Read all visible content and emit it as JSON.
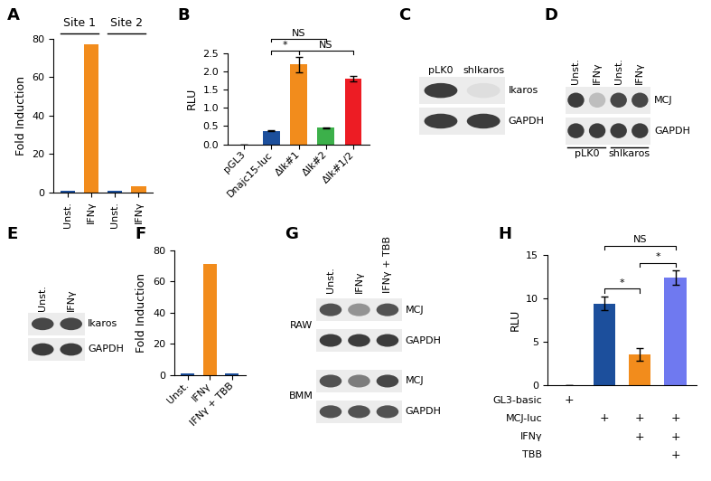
{
  "chart_data": [
    {
      "type": "bar",
      "title": "A",
      "categories": [
        "Unst.",
        "IFNγ",
        "Unst.",
        "IFNγ"
      ],
      "values": [
        1,
        77,
        1,
        3
      ],
      "colors": [
        "#1c4f9c",
        "#f28c1c",
        "#1c4f9c",
        "#f28c1c"
      ],
      "y_label": "Fold Induction",
      "ylim": [
        0,
        80
      ],
      "yticks": [
        0,
        20,
        40,
        60,
        80
      ],
      "groups": [
        "Site 1",
        "Site 2"
      ]
    },
    {
      "type": "bar",
      "title": "B",
      "categories": [
        "pGL3",
        "Dnajc15-luc",
        "ΔIk#1",
        "ΔIk#2",
        "ΔIk#1/2"
      ],
      "values": [
        0,
        0.37,
        2.18,
        0.45,
        1.8
      ],
      "errors": [
        0,
        0.02,
        0.22,
        0.02,
        0.08
      ],
      "colors": [
        "#1c4f9c",
        "#1c4f9c",
        "#f28c1c",
        "#3cb04a",
        "#ed1c24"
      ],
      "y_label": "RLU",
      "ylim": [
        0,
        2.5
      ],
      "yticks": [
        {
          "value": 0,
          "label": "0.0"
        },
        0.5,
        {
          "value": 1,
          "label": "1.0"
        },
        1.5,
        {
          "value": 2,
          "label": "2.0"
        },
        2.5
      ],
      "annotations": [
        {
          "text": "*",
          "from": 1,
          "to": 2
        },
        {
          "text": "NS",
          "from": 2,
          "to": 4
        },
        {
          "text": "NS",
          "from": 1,
          "to": 3
        }
      ]
    },
    {
      "type": "bar",
      "title": "F",
      "categories": [
        "Unst.",
        "IFNγ",
        "IFNγ + TBB"
      ],
      "values": [
        1,
        71,
        1
      ],
      "colors": [
        "#1c4f9c",
        "#f28c1c",
        "#1c4f9c"
      ],
      "y_label": "Fold Induction",
      "ylim": [
        0,
        80
      ],
      "yticks": [
        0,
        20,
        40,
        60,
        80
      ]
    },
    {
      "type": "bar",
      "title": "H",
      "categories": [
        null,
        null,
        null,
        null
      ],
      "values": [
        0,
        9.4,
        3.5,
        12.4
      ],
      "errors": [
        0,
        0.8,
        0.75,
        0.8
      ],
      "colors": [
        "#1c4f9c",
        "#1c4f9c",
        "#f28c1c",
        "#6f79f0"
      ],
      "y_label": "RLU",
      "ylim": [
        0,
        15
      ],
      "yticks": [
        0,
        5,
        10,
        15
      ],
      "annotations": [
        {
          "text": "*",
          "from": 1,
          "to": 2
        },
        {
          "text": "*",
          "from": 2,
          "to": 3
        },
        {
          "text": "NS",
          "from": 1,
          "to": 3
        }
      ],
      "treatments": [
        {
          "name": "GL3-basic",
          "marks": [
            "+",
            null,
            null,
            null
          ]
        },
        {
          "name": "MCJ-luc",
          "marks": [
            null,
            "+",
            "+",
            "+"
          ]
        },
        {
          "name": "IFNγ",
          "marks": [
            null,
            null,
            "+",
            "+"
          ]
        },
        {
          "name": "TBB",
          "marks": [
            null,
            null,
            null,
            "+"
          ]
        }
      ]
    }
  ],
  "blots": [
    {
      "title": "C",
      "lanes": [
        "pLK0",
        "shIkaros"
      ],
      "rows": [
        "Ikaros",
        "GAPDH"
      ]
    },
    {
      "title": "D",
      "lanes": [
        "Unst.",
        "IFNγ",
        "Unst.",
        "IFNγ"
      ],
      "rows": [
        "MCJ",
        "GAPDH"
      ],
      "groups": [
        "pLK0",
        "shIkaros"
      ]
    },
    {
      "title": "E",
      "lanes": [
        "Unst.",
        "IFNγ"
      ],
      "rows": [
        "Ikaros",
        "GAPDH"
      ]
    },
    {
      "title": "G",
      "lanes": [
        "Unst.",
        "IFNγ",
        "IFNγ + TBB"
      ],
      "sections": [
        {
          "label": "RAW",
          "rows": [
            "MCJ",
            "GAPDH"
          ]
        },
        {
          "label": "BMM",
          "rows": [
            "MCJ",
            "GAPDH"
          ]
        }
      ]
    }
  ]
}
